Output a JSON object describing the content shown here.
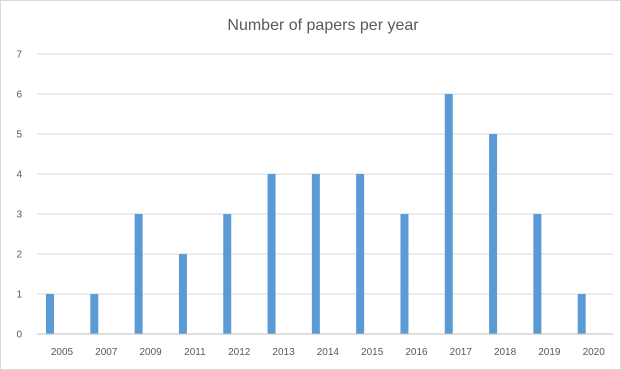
{
  "chart_data": {
    "type": "bar",
    "title": "Number of papers per year",
    "xlabel": "",
    "ylabel": "",
    "categories": [
      "2005",
      "2007",
      "2009",
      "2011",
      "2012",
      "2013",
      "2014",
      "2015",
      "2016",
      "2017",
      "2018",
      "2019",
      "2020"
    ],
    "values": [
      1,
      1,
      3,
      2,
      3,
      4,
      4,
      4,
      3,
      6,
      5,
      3,
      1
    ],
    "ylim": [
      0,
      7
    ],
    "yticks": [
      0,
      1,
      2,
      3,
      4,
      5,
      6,
      7
    ],
    "grid": true,
    "legend": "none",
    "bar_color": "#5b9bd5"
  }
}
